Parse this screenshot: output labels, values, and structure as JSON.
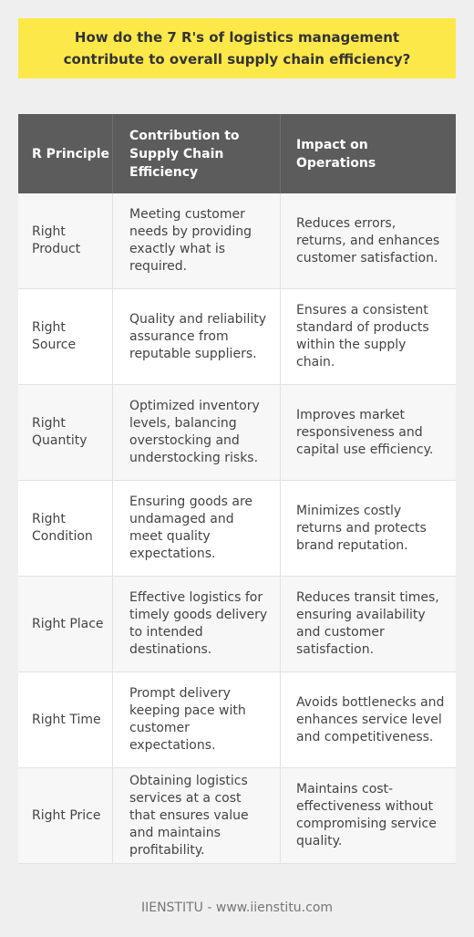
{
  "title": "How do the 7 R's of logistics management contribute to overall supply chain efficiency?",
  "table": {
    "headers": [
      "R Principle",
      "Contribution to Supply Chain Efficiency",
      "Impact on Operations"
    ],
    "rows": [
      [
        "Right Product",
        "Meeting customer needs by providing exactly what is required.",
        "Reduces errors, returns, and enhances customer satisfaction."
      ],
      [
        "Right Source",
        "Quality and reliability assurance from reputable suppliers.",
        "Ensures a consistent standard of products within the supply chain."
      ],
      [
        "Right Quantity",
        "Optimized inventory levels, balancing overstocking and understocking risks.",
        "Improves market responsiveness and capital use efficiency."
      ],
      [
        "Right Condition",
        "Ensuring goods are undamaged and meet quality expectations.",
        "Minimizes costly returns and protects brand reputation."
      ],
      [
        "Right Place",
        "Effective logistics for timely goods delivery to intended destinations.",
        "Reduces transit times, ensuring availability and customer satisfaction."
      ],
      [
        "Right Time",
        "Prompt delivery keeping pace with customer expectations.",
        "Avoids bottlenecks and enhances service level and competitiveness."
      ],
      [
        "Right Price",
        "Obtaining logistics services at a cost that ensures value and maintains profitability.",
        "Maintains cost-effectiveness without compromising service quality."
      ]
    ]
  },
  "footer": "IIENSTITU - www.iienstitu.com",
  "colors": {
    "title_bg": "#fde84a",
    "header_bg": "#5c5c5c",
    "page_bg": "#efefef"
  }
}
